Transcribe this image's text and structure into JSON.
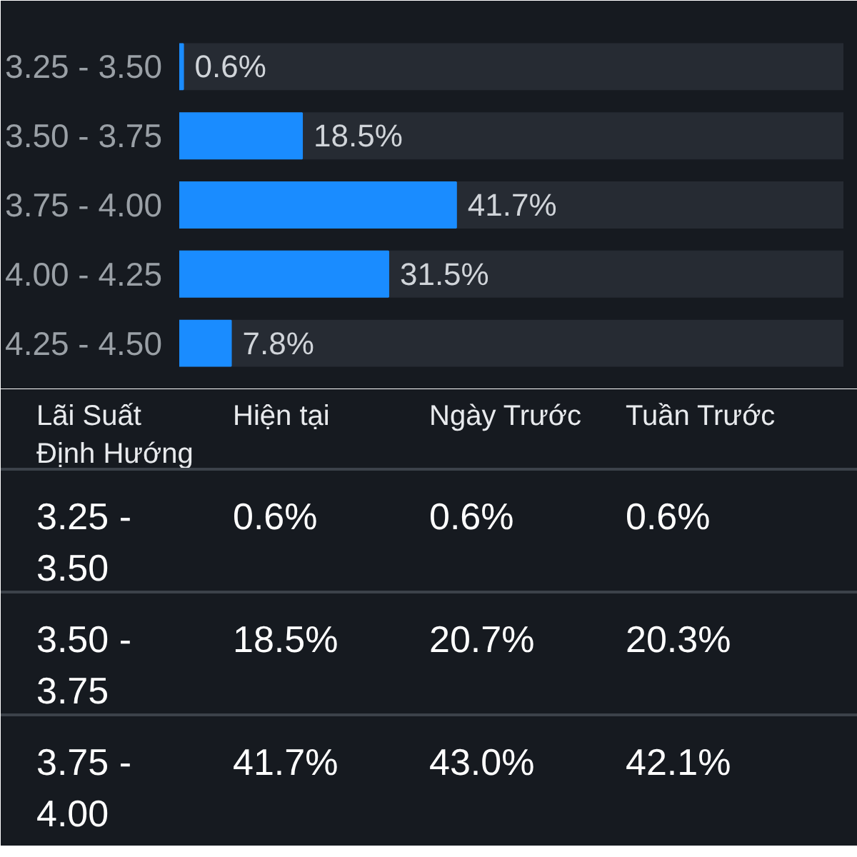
{
  "chart_data": [
    {
      "type": "bar",
      "orientation": "horizontal",
      "categories": [
        "3.25 - 3.50",
        "3.50 - 3.75",
        "3.75 - 4.00",
        "4.00 - 4.25",
        "4.25 - 4.50"
      ],
      "values": [
        0.6,
        18.5,
        41.7,
        31.5,
        7.8
      ],
      "value_labels": [
        "0.6%",
        "18.5%",
        "41.7%",
        "31.5%",
        "7.8%"
      ],
      "color": "#1a8cff",
      "xlim": [
        0,
        100
      ],
      "tick_labels": "y",
      "grid": false
    },
    {
      "type": "other",
      "categories": [
        "Lãi Suất Định Hướng",
        "Hiện tại",
        "Ngày Trước",
        "Tuần Trước"
      ],
      "annotations": [
        "3.25 - 3.50",
        "0.6%",
        "0.6%",
        "0.6%",
        "3.50 - 3.75",
        "18.5%",
        "20.7%",
        "20.3%",
        "3.75 - 4.00",
        "41.7%",
        "43.0%",
        "42.1%"
      ]
    }
  ]
}
